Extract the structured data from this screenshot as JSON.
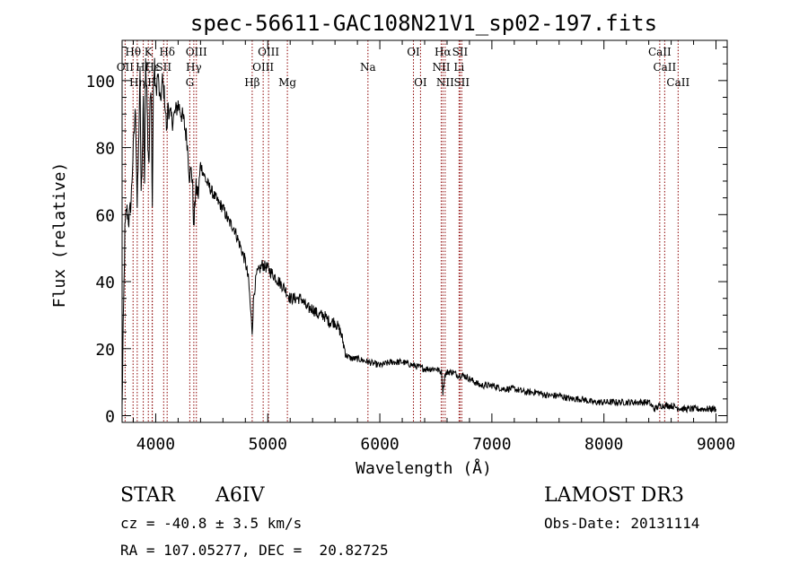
{
  "chart_data": {
    "type": "line",
    "title": "spec-56611-GAC108N21V1_sp02-197.fits",
    "xlabel": "Wavelength (Å)",
    "ylabel": "Flux (relative)",
    "xlim": [
      3700,
      9100
    ],
    "ylim": [
      -2,
      112
    ],
    "xticks": [
      4000,
      5000,
      6000,
      7000,
      8000,
      9000
    ],
    "yticks": [
      0,
      20,
      40,
      60,
      80,
      100
    ],
    "tick_labels_x": [
      "4000",
      "5000",
      "6000",
      "7000",
      "8000",
      "9000"
    ],
    "tick_labels_y": [
      "0",
      "20",
      "40",
      "60",
      "80",
      "100"
    ],
    "series": [
      {
        "name": "flux",
        "x": [
          3700,
          3710,
          3725,
          3740,
          3760,
          3780,
          3800,
          3820,
          3835,
          3850,
          3860,
          3870,
          3880,
          3890,
          3900,
          3910,
          3920,
          3930,
          3940,
          3950,
          3960,
          3970,
          3980,
          3990,
          4000,
          4020,
          4040,
          4060,
          4080,
          4100,
          4110,
          4120,
          4150,
          4200,
          4250,
          4280,
          4300,
          4320,
          4330,
          4340,
          4350,
          4360,
          4380,
          4400,
          4450,
          4500,
          4550,
          4600,
          4650,
          4700,
          4750,
          4800,
          4830,
          4850,
          4861,
          4875,
          4900,
          4950,
          5000,
          5050,
          5100,
          5150,
          5200,
          5250,
          5300,
          5350,
          5400,
          5450,
          5500,
          5550,
          5600,
          5650,
          5700,
          5750,
          5800,
          5900,
          6000,
          6100,
          6200,
          6300,
          6400,
          6500,
          6550,
          6563,
          6580,
          6600,
          6650,
          6700,
          6750,
          6800,
          6900,
          7000,
          7100,
          7200,
          7300,
          7400,
          7500,
          7600,
          7700,
          7800,
          7900,
          8000,
          8100,
          8200,
          8300,
          8400,
          8450,
          8500,
          8600,
          8700,
          8800,
          8900,
          9000
        ],
        "values": [
          2,
          25,
          55,
          62,
          58,
          64,
          80,
          92,
          62,
          85,
          102,
          65,
          78,
          96,
          70,
          104,
          100,
          82,
          76,
          95,
          94,
          62,
          100,
          104,
          96,
          102,
          93,
          100,
          95,
          84,
          94,
          90,
          88,
          93,
          88,
          82,
          72,
          73,
          68,
          55,
          64,
          68,
          66,
          75,
          70,
          67,
          64,
          62,
          58,
          56,
          51,
          46,
          40,
          30,
          25,
          36,
          42,
          45,
          44,
          42,
          40,
          38,
          35,
          35,
          35,
          32,
          32,
          30,
          30,
          28,
          28,
          25,
          18,
          17,
          17,
          16,
          15,
          16,
          16,
          15,
          14,
          14,
          13,
          7,
          12,
          13,
          13,
          12,
          12,
          11,
          9,
          9,
          8,
          8,
          7,
          7,
          6,
          6,
          5,
          5,
          4,
          4,
          4,
          4,
          4,
          4,
          2,
          3,
          3,
          2,
          2,
          2,
          2
        ]
      }
    ],
    "line_markers": [
      {
        "wavelength": 3727,
        "label": "OII",
        "row": 2
      },
      {
        "wavelength": 3798,
        "label": "Hθ",
        "row": 1
      },
      {
        "wavelength": 3835,
        "label": "Hη",
        "row": 3
      },
      {
        "wavelength": 3889,
        "label": "Hζ",
        "row": 2
      },
      {
        "wavelength": 3934,
        "label": "K",
        "row": 1
      },
      {
        "wavelength": 3968,
        "label": "H",
        "row": 3
      },
      {
        "wavelength": 3970,
        "label": "Hε",
        "row": 2
      },
      {
        "wavelength": 4071,
        "label": "SII",
        "row": 2
      },
      {
        "wavelength": 4102,
        "label": "Hδ",
        "row": 1
      },
      {
        "wavelength": 4304,
        "label": "G",
        "row": 3
      },
      {
        "wavelength": 4340,
        "label": "Hγ",
        "row": 2
      },
      {
        "wavelength": 4363,
        "label": "OIII",
        "row": 1
      },
      {
        "wavelength": 4861,
        "label": "Hβ",
        "row": 3
      },
      {
        "wavelength": 4959,
        "label": "OIII",
        "row": 2
      },
      {
        "wavelength": 5007,
        "label": "OIII",
        "row": 1
      },
      {
        "wavelength": 5175,
        "label": "Mg",
        "row": 3
      },
      {
        "wavelength": 5894,
        "label": "Na",
        "row": 2
      },
      {
        "wavelength": 6300,
        "label": "OI",
        "row": 1
      },
      {
        "wavelength": 6363,
        "label": "OI",
        "row": 3
      },
      {
        "wavelength": 6548,
        "label": "NII",
        "row": 2
      },
      {
        "wavelength": 6563,
        "label": "Hα",
        "row": 1
      },
      {
        "wavelength": 6583,
        "label": "NII",
        "row": 3
      },
      {
        "wavelength": 6707,
        "label": "Li",
        "row": 2
      },
      {
        "wavelength": 6716,
        "label": "SII",
        "row": 1
      },
      {
        "wavelength": 6731,
        "label": "SII",
        "row": 3
      },
      {
        "wavelength": 8498,
        "label": "CaII",
        "row": 1
      },
      {
        "wavelength": 8542,
        "label": "CaII",
        "row": 2
      },
      {
        "wavelength": 8662,
        "label": "CaII",
        "row": 3
      }
    ]
  },
  "info": {
    "class": "STAR",
    "subclass": "A6IV",
    "survey": "LAMOST DR3",
    "cz": "cz = -40.8 ± 3.5 km/s",
    "obs_date": "Obs-Date: 20131114",
    "coords": "RA = 107.05277, DEC =  20.82725"
  },
  "colors": {
    "line_marker": "#8b0000",
    "spectrum": "#000000"
  }
}
